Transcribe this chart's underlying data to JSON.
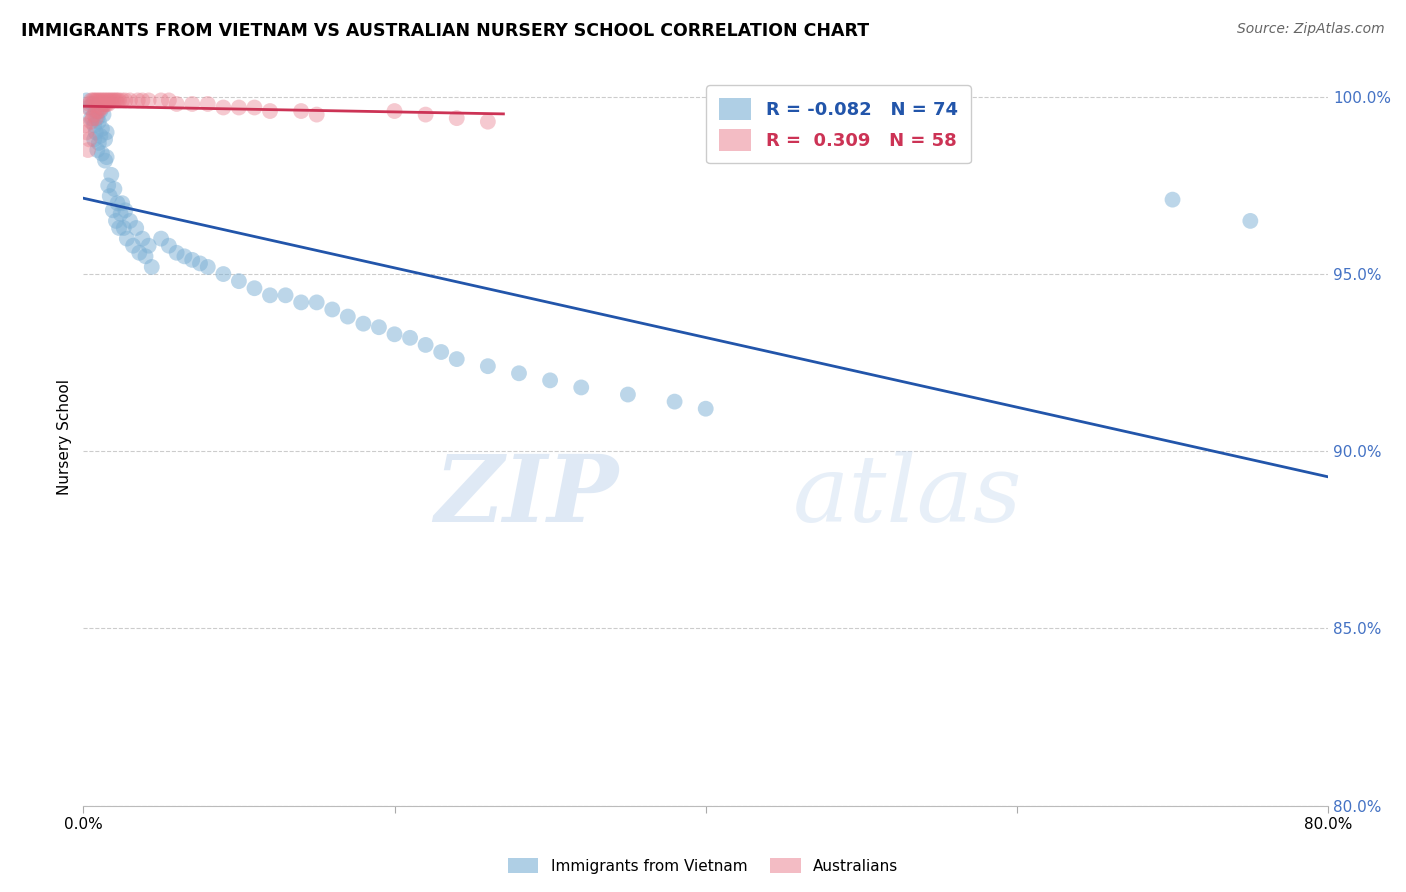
{
  "title": "IMMIGRANTS FROM VIETNAM VS AUSTRALIAN NURSERY SCHOOL CORRELATION CHART",
  "source": "Source: ZipAtlas.com",
  "ylabel": "Nursery School",
  "xlim": [
    0.0,
    0.8
  ],
  "ylim": [
    0.8,
    1.008
  ],
  "ytick_vals": [
    0.8,
    0.85,
    0.9,
    0.95,
    1.0
  ],
  "ytick_labels": [
    "80.0%",
    "85.0%",
    "90.0%",
    "95.0%",
    "100.0%"
  ],
  "xtick_vals": [
    0.0,
    0.2,
    0.4,
    0.6,
    0.8
  ],
  "xtick_labels": [
    "0.0%",
    "",
    "",
    "",
    "80.0%"
  ],
  "blue_color": "#7bafd4",
  "pink_color": "#e87a8a",
  "blue_line_color": "#2255aa",
  "pink_line_color": "#cc3355",
  "grid_color": "#cccccc",
  "watermark_zip": "ZIP",
  "watermark_atlas": "atlas",
  "R_blue": -0.082,
  "N_blue": 74,
  "R_pink": 0.309,
  "N_pink": 58,
  "blue_scatter_x": [
    0.002,
    0.004,
    0.005,
    0.006,
    0.007,
    0.007,
    0.008,
    0.008,
    0.009,
    0.009,
    0.01,
    0.01,
    0.011,
    0.011,
    0.012,
    0.012,
    0.013,
    0.014,
    0.014,
    0.015,
    0.015,
    0.016,
    0.017,
    0.018,
    0.019,
    0.02,
    0.021,
    0.022,
    0.023,
    0.024,
    0.025,
    0.026,
    0.027,
    0.028,
    0.03,
    0.032,
    0.034,
    0.036,
    0.038,
    0.04,
    0.042,
    0.044,
    0.05,
    0.055,
    0.06,
    0.065,
    0.07,
    0.075,
    0.08,
    0.09,
    0.1,
    0.11,
    0.12,
    0.13,
    0.14,
    0.15,
    0.16,
    0.17,
    0.18,
    0.19,
    0.2,
    0.21,
    0.22,
    0.23,
    0.24,
    0.26,
    0.28,
    0.3,
    0.32,
    0.35,
    0.38,
    0.4,
    0.7,
    0.75
  ],
  "blue_scatter_y": [
    0.999,
    0.997,
    0.994,
    0.998,
    0.992,
    0.988,
    0.996,
    0.99,
    0.994,
    0.985,
    0.993,
    0.987,
    0.996,
    0.989,
    0.991,
    0.984,
    0.995,
    0.988,
    0.982,
    0.99,
    0.983,
    0.975,
    0.972,
    0.978,
    0.968,
    0.974,
    0.965,
    0.97,
    0.963,
    0.967,
    0.97,
    0.963,
    0.968,
    0.96,
    0.965,
    0.958,
    0.963,
    0.956,
    0.96,
    0.955,
    0.958,
    0.952,
    0.96,
    0.958,
    0.956,
    0.955,
    0.954,
    0.953,
    0.952,
    0.95,
    0.948,
    0.946,
    0.944,
    0.944,
    0.942,
    0.942,
    0.94,
    0.938,
    0.936,
    0.935,
    0.933,
    0.932,
    0.93,
    0.928,
    0.926,
    0.924,
    0.922,
    0.92,
    0.918,
    0.916,
    0.914,
    0.912,
    0.971,
    0.965
  ],
  "pink_scatter_x": [
    0.001,
    0.002,
    0.003,
    0.003,
    0.004,
    0.004,
    0.005,
    0.005,
    0.006,
    0.006,
    0.007,
    0.007,
    0.008,
    0.008,
    0.009,
    0.009,
    0.01,
    0.01,
    0.011,
    0.011,
    0.012,
    0.012,
    0.013,
    0.013,
    0.014,
    0.014,
    0.015,
    0.015,
    0.016,
    0.016,
    0.017,
    0.018,
    0.019,
    0.02,
    0.021,
    0.022,
    0.023,
    0.025,
    0.027,
    0.03,
    0.035,
    0.038,
    0.042,
    0.05,
    0.055,
    0.06,
    0.07,
    0.08,
    0.09,
    0.1,
    0.11,
    0.12,
    0.14,
    0.15,
    0.2,
    0.22,
    0.24,
    0.26
  ],
  "pink_scatter_y": [
    0.992,
    0.99,
    0.997,
    0.985,
    0.998,
    0.988,
    0.999,
    0.993,
    0.999,
    0.994,
    0.999,
    0.995,
    0.999,
    0.994,
    0.999,
    0.996,
    0.999,
    0.996,
    0.999,
    0.997,
    0.999,
    0.997,
    0.999,
    0.998,
    0.999,
    0.998,
    0.999,
    0.998,
    0.999,
    0.998,
    0.999,
    0.999,
    0.999,
    0.999,
    0.999,
    0.999,
    0.999,
    0.999,
    0.999,
    0.999,
    0.999,
    0.999,
    0.999,
    0.999,
    0.999,
    0.998,
    0.998,
    0.998,
    0.997,
    0.997,
    0.997,
    0.996,
    0.996,
    0.995,
    0.996,
    0.995,
    0.994,
    0.993
  ]
}
